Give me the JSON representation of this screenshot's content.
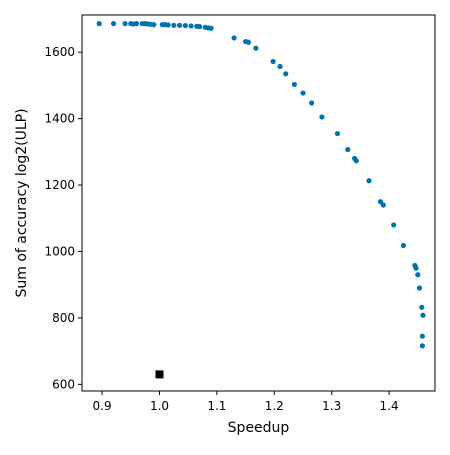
{
  "chart_data": {
    "type": "scatter",
    "title": "",
    "xlabel": "Speedup",
    "ylabel": "Sum of accuracy log2(ULP)",
    "xlim": [
      0.865,
      1.48
    ],
    "ylim": [
      580,
      1712
    ],
    "xticks": [
      0.9,
      1.0,
      1.1,
      1.2,
      1.3,
      1.4
    ],
    "xtick_labels": [
      "0.9",
      "1.0",
      "1.1",
      "1.2",
      "1.3",
      "1.4"
    ],
    "yticks": [
      600,
      800,
      1000,
      1200,
      1400,
      1600
    ],
    "ytick_labels": [
      "600",
      "800",
      "1000",
      "1200",
      "1400",
      "1600"
    ],
    "grid": false,
    "colors": {
      "series": "#0072b2",
      "baseline": "#000000"
    },
    "series": [
      {
        "marker": "circle",
        "x": [
          0.895,
          0.92,
          0.94,
          0.95,
          0.955,
          0.96,
          0.97,
          0.975,
          0.98,
          0.985,
          0.99,
          1.005,
          1.01,
          1.015,
          1.025,
          1.035,
          1.045,
          1.055,
          1.065,
          1.07,
          1.08,
          1.085,
          1.09,
          1.13,
          1.15,
          1.155,
          1.168,
          1.198,
          1.21,
          1.22,
          1.235,
          1.25,
          1.265,
          1.283,
          1.31,
          1.328,
          1.34,
          1.343,
          1.365,
          1.385,
          1.39,
          1.408,
          1.425,
          1.445,
          1.447,
          1.45,
          1.453,
          1.457,
          1.459,
          1.458,
          1.458
        ],
        "y": [
          1686,
          1686,
          1686,
          1686,
          1685,
          1686,
          1686,
          1686,
          1685,
          1684,
          1683,
          1683,
          1683,
          1682,
          1681,
          1681,
          1680,
          1679,
          1678,
          1677,
          1675,
          1673,
          1672,
          1643,
          1632,
          1630,
          1612,
          1572,
          1557,
          1535,
          1503,
          1477,
          1447,
          1405,
          1355,
          1307,
          1280,
          1273,
          1213,
          1150,
          1140,
          1080,
          1018,
          958,
          950,
          930,
          890,
          832,
          808,
          745,
          716
        ]
      },
      {
        "marker": "square",
        "x": [
          1.0
        ],
        "y": [
          630
        ]
      }
    ]
  }
}
